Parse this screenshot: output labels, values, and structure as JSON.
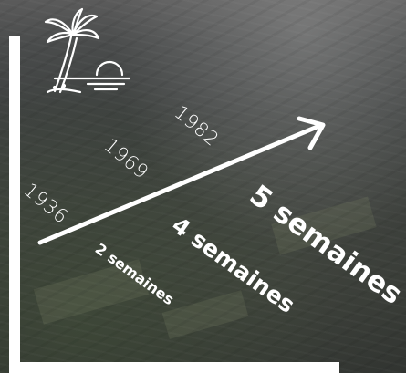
{
  "years": [
    "1936",
    "1969",
    "1982"
  ],
  "durations": [
    "2 semaines",
    "4 semaines",
    "5 semaines"
  ],
  "icon": "palm-tree-sunset-icon",
  "colors": {
    "text": "#ffffff",
    "background": "#3e4140"
  }
}
